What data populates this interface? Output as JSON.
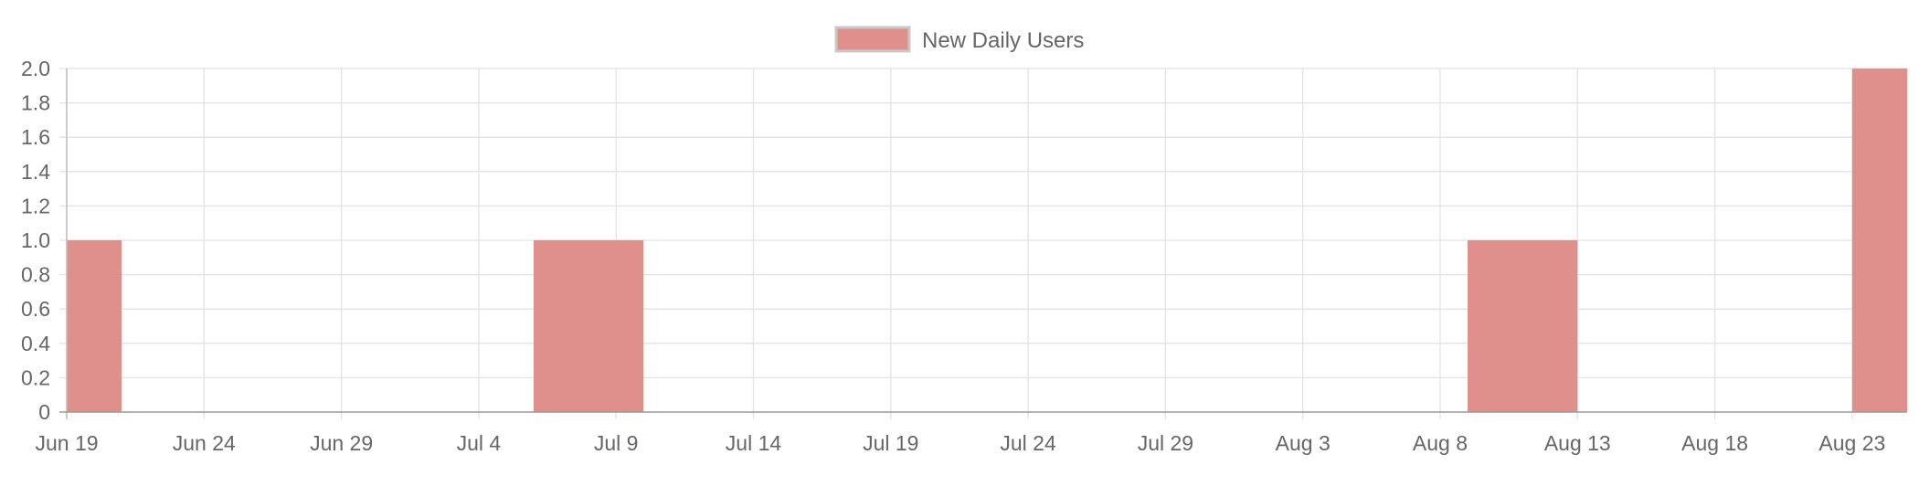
{
  "chart_data": {
    "type": "bar",
    "title": "",
    "xlabel": "",
    "ylabel": "",
    "legend": {
      "position": "top",
      "entries": [
        {
          "label": "New Daily Users",
          "color": "#e0908c",
          "border": "#c9c9c9"
        }
      ]
    },
    "x_axis": {
      "type": "date",
      "range": [
        "2020-06-19",
        "2020-08-25"
      ],
      "ticks": [
        {
          "date": "2020-06-19",
          "label": "Jun 19"
        },
        {
          "date": "2020-06-24",
          "label": "Jun 24"
        },
        {
          "date": "2020-06-29",
          "label": "Jun 29"
        },
        {
          "date": "2020-07-04",
          "label": "Jul 4"
        },
        {
          "date": "2020-07-09",
          "label": "Jul 9"
        },
        {
          "date": "2020-07-14",
          "label": "Jul 14"
        },
        {
          "date": "2020-07-19",
          "label": "Jul 19"
        },
        {
          "date": "2020-07-24",
          "label": "Jul 24"
        },
        {
          "date": "2020-07-29",
          "label": "Jul 29"
        },
        {
          "date": "2020-08-03",
          "label": "Aug 3"
        },
        {
          "date": "2020-08-08",
          "label": "Aug 8"
        },
        {
          "date": "2020-08-13",
          "label": "Aug 13"
        },
        {
          "date": "2020-08-18",
          "label": "Aug 18"
        },
        {
          "date": "2020-08-23",
          "label": "Aug 23"
        }
      ]
    },
    "y_axis": {
      "ylim": [
        0,
        2.0
      ],
      "ticks": [
        {
          "value": 0,
          "label": "0"
        },
        {
          "value": 0.2,
          "label": "0.2"
        },
        {
          "value": 0.4,
          "label": "0.4"
        },
        {
          "value": 0.6,
          "label": "0.6"
        },
        {
          "value": 0.8,
          "label": "0.8"
        },
        {
          "value": 1.0,
          "label": "1.0"
        },
        {
          "value": 1.2,
          "label": "1.2"
        },
        {
          "value": 1.4,
          "label": "1.4"
        },
        {
          "value": 1.6,
          "label": "1.6"
        },
        {
          "value": 1.8,
          "label": "1.8"
        },
        {
          "value": 2.0,
          "label": "2.0"
        }
      ]
    },
    "grid": true,
    "series": [
      {
        "name": "New Daily Users",
        "color": "#e0908c",
        "points": [
          {
            "start": "2020-06-19",
            "end": "2020-06-21",
            "value": 1
          },
          {
            "start": "2020-07-06",
            "end": "2020-07-10",
            "value": 1
          },
          {
            "start": "2020-08-09",
            "end": "2020-08-13",
            "value": 1
          },
          {
            "start": "2020-08-23",
            "end": "2020-08-25",
            "value": 2
          }
        ]
      }
    ]
  }
}
